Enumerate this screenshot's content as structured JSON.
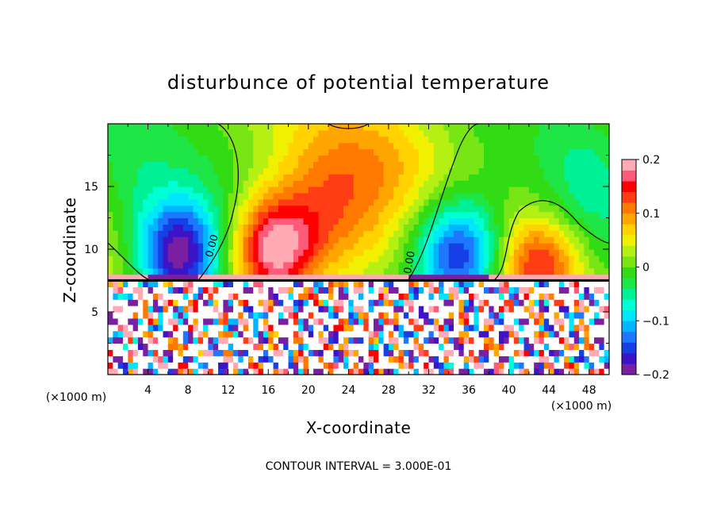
{
  "chart_data": {
    "type": "heatmap",
    "title": "disturbunce of potential temperature",
    "xlabel": "X-coordinate",
    "ylabel": "Z-coordinate",
    "x_unit": "(×1000 m)",
    "x_unit_right": "(×1000 m)",
    "xlim": [
      0,
      50
    ],
    "ylim": [
      0,
      20
    ],
    "x_ticks": [
      "4",
      "8",
      "12",
      "16",
      "20",
      "24",
      "28",
      "32",
      "36",
      "40",
      "44",
      "48"
    ],
    "y_ticks": [
      "5",
      "10",
      "15"
    ],
    "colorbar": {
      "range": [
        -0.2,
        0.2
      ],
      "tick_labels": [
        "0.2",
        "0.1",
        "0",
        "−0.1",
        "−0.2"
      ],
      "tick_values": [
        0.2,
        0.1,
        0,
        -0.1,
        -0.2
      ],
      "colors": [
        "#7a1fa2",
        "#3c14c8",
        "#1440e6",
        "#1e78ff",
        "#00b4ff",
        "#00e6ff",
        "#00ffd2",
        "#00f096",
        "#1ee646",
        "#32dc14",
        "#78e614",
        "#b4f014",
        "#f0f000",
        "#ffd200",
        "#ffa500",
        "#ff7800",
        "#ff3c14",
        "#ff0000",
        "#ff5a78",
        "#ffaab4"
      ]
    },
    "contour_labels": [
      "0.00",
      "0.00"
    ],
    "footer": "CONTOUR INTERVAL = 3.000E-01",
    "blobs": [
      {
        "x": 7.0,
        "z": 9.5,
        "v": -0.21,
        "sx": 3.0,
        "sz": 3.2
      },
      {
        "x": 35.0,
        "z": 9.5,
        "v": -0.2,
        "sx": 3.2,
        "sz": 3.2
      },
      {
        "x": 16.5,
        "z": 10.0,
        "v": 0.19,
        "sx": 3.0,
        "sz": 3.0
      },
      {
        "x": 22.0,
        "z": 13.0,
        "v": 0.09,
        "sx": 4.0,
        "sz": 4.5
      },
      {
        "x": 43.0,
        "z": 9.0,
        "v": 0.12,
        "sx": 3.0,
        "sz": 2.6
      },
      {
        "x": 2.0,
        "z": 16.0,
        "v": -0.03,
        "sx": 3.0,
        "sz": 4.0
      },
      {
        "x": 28.0,
        "z": 17.0,
        "v": 0.03,
        "sx": 4.0,
        "sz": 3.0
      },
      {
        "x": 48.0,
        "z": 15.0,
        "v": -0.04,
        "sx": 3.0,
        "sz": 4.0
      }
    ]
  }
}
